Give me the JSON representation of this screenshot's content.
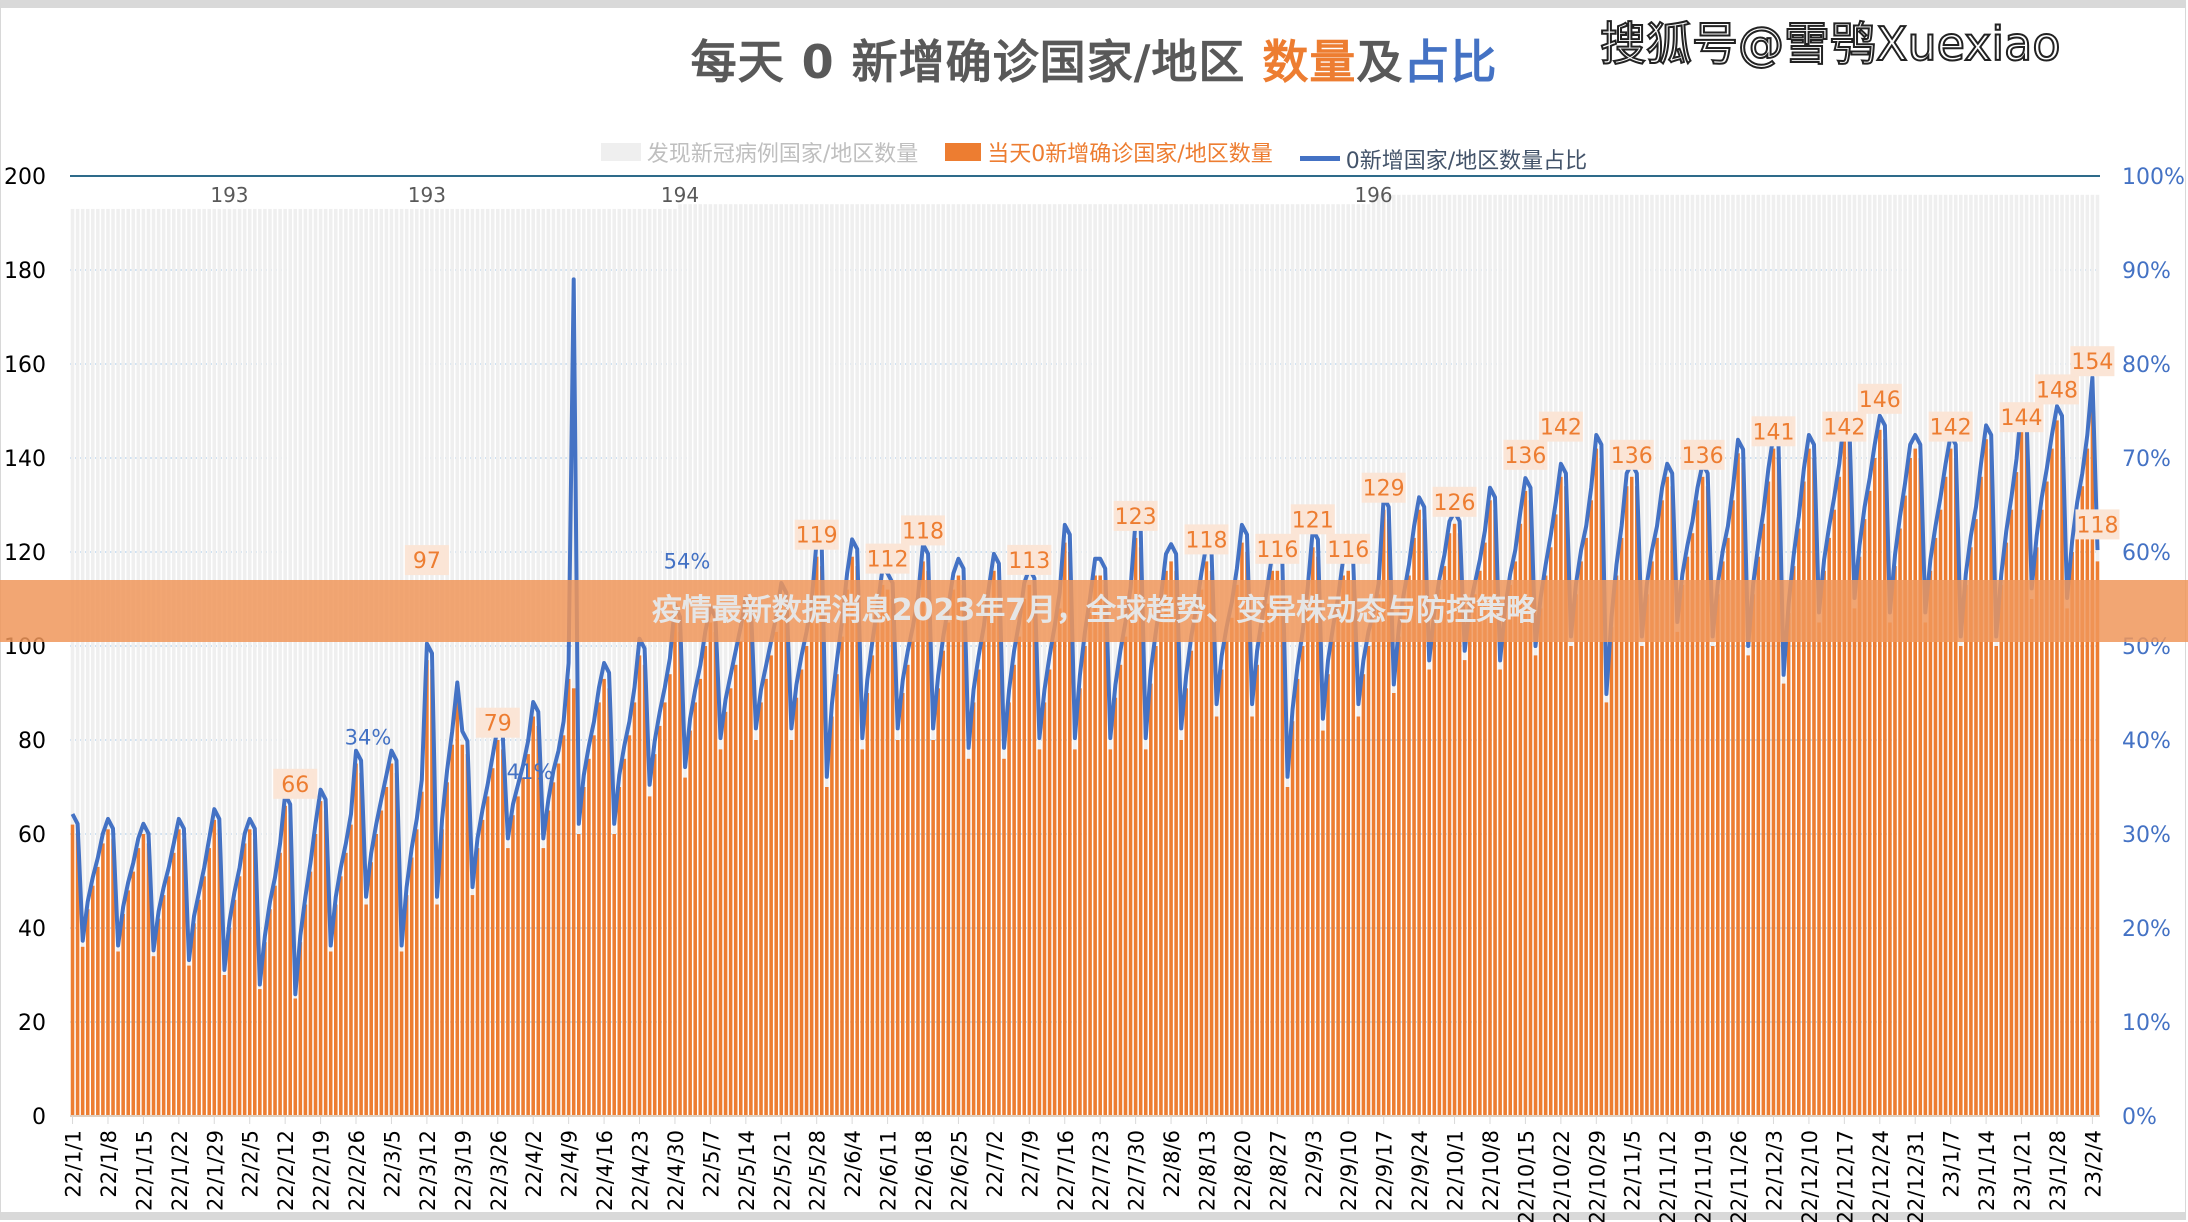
{
  "title": {
    "part1": "每天 0 新增确诊国家/地区 ",
    "part2": "数量",
    "part3": "及",
    "part4": "占比"
  },
  "legend": [
    {
      "label": "发现新冠病例国家/地区数量",
      "color": "#efefef"
    },
    {
      "label": "当天0新增确诊国家/地区数量",
      "color": "#ed7d31"
    },
    {
      "label": "0新增国家/地区数量占比",
      "color": "#4472c4"
    }
  ],
  "banner": "疫情最新数据消息2023年7月，全球趋势、变异株动态与防控策略",
  "watermark": "搜狐号@雪鸮Xuexiao",
  "chart_data": {
    "type": "bar+line",
    "y_left": {
      "range": [
        0,
        200
      ],
      "ticks": [
        "0",
        "20",
        "40",
        "60",
        "80",
        "100",
        "120",
        "140",
        "160",
        "180",
        "200"
      ]
    },
    "y_right": {
      "range": [
        0,
        100
      ],
      "ticks": [
        "0%",
        "10%",
        "20%",
        "30%",
        "40%",
        "50%",
        "60%",
        "70%",
        "80%",
        "90%",
        "100%"
      ]
    },
    "grid": true,
    "legend_position": "top",
    "x_ticks": [
      "22/1/1",
      "22/1/8",
      "22/1/15",
      "22/1/22",
      "22/1/29",
      "22/2/5",
      "22/2/12",
      "22/2/19",
      "22/2/26",
      "22/3/5",
      "22/3/12",
      "22/3/19",
      "22/3/26",
      "22/4/2",
      "22/4/9",
      "22/4/16",
      "22/4/23",
      "22/4/30",
      "22/5/7",
      "22/5/14",
      "22/5/21",
      "22/5/28",
      "22/6/4",
      "22/6/11",
      "22/6/18",
      "22/6/25",
      "22/7/2",
      "22/7/9",
      "22/7/16",
      "22/7/23",
      "22/7/30",
      "22/8/6",
      "22/8/13",
      "22/8/20",
      "22/8/27",
      "22/9/3",
      "22/9/10",
      "22/9/17",
      "22/9/24",
      "22/10/1",
      "22/10/8",
      "22/10/15",
      "22/10/22",
      "22/10/29",
      "22/11/5",
      "22/11/12",
      "22/11/19",
      "22/11/26",
      "22/12/3",
      "22/12/10",
      "22/12/17",
      "22/12/24",
      "22/12/31",
      "23/1/7",
      "23/1/14",
      "23/1/21",
      "23/1/28",
      "23/2/4"
    ],
    "total_countries": [
      {
        "from": "22/1/1",
        "to": "22/4/30",
        "value": 193
      },
      {
        "from": "22/5/1",
        "to": "22/9/14",
        "value": 194
      },
      {
        "from": "22/9/15",
        "to": "23/2/5",
        "value": 196
      }
    ],
    "total_labels": [
      {
        "date": "22/2/1",
        "text": "193"
      },
      {
        "date": "22/3/12",
        "text": "193"
      },
      {
        "date": "22/5/1",
        "text": "194"
      },
      {
        "date": "22/9/15",
        "text": "196"
      }
    ],
    "zero_new_counts": [
      62,
      60,
      36,
      44,
      49,
      53,
      58,
      61,
      59,
      35,
      43,
      48,
      52,
      57,
      60,
      58,
      34,
      42,
      47,
      51,
      56,
      61,
      59,
      32,
      41,
      46,
      51,
      57,
      63,
      61,
      30,
      40,
      46,
      51,
      58,
      61,
      59,
      27,
      37,
      44,
      49,
      56,
      66,
      64,
      25,
      37,
      45,
      52,
      60,
      67,
      65,
      35,
      45,
      51,
      56,
      62,
      75,
      73,
      45,
      54,
      60,
      65,
      70,
      75,
      73,
      35,
      47,
      55,
      61,
      69,
      97,
      95,
      45,
      61,
      71,
      79,
      89,
      79,
      77,
      47,
      57,
      63,
      68,
      74,
      80,
      78,
      57,
      64,
      68,
      72,
      77,
      85,
      83,
      57,
      65,
      71,
      75,
      81,
      93,
      91,
      60,
      70,
      76,
      81,
      88,
      93,
      91,
      60,
      70,
      76,
      81,
      88,
      98,
      96,
      68,
      77,
      83,
      88,
      94,
      105,
      103,
      72,
      82,
      88,
      93,
      100,
      105,
      103,
      78,
      86,
      91,
      96,
      101,
      107,
      105,
      80,
      88,
      93,
      98,
      103,
      110,
      108,
      80,
      89,
      95,
      100,
      106,
      119,
      117,
      70,
      85,
      94,
      102,
      112,
      119,
      117,
      78,
      90,
      98,
      105,
      113,
      112,
      110,
      80,
      90,
      96,
      101,
      107,
      118,
      116,
      80,
      91,
      99,
      105,
      112,
      115,
      113,
      76,
      88,
      95,
      101,
      109,
      116,
      114,
      76,
      88,
      96,
      102,
      110,
      113,
      111,
      78,
      88,
      95,
      101,
      108,
      122,
      120,
      78,
      91,
      100,
      107,
      115,
      115,
      113,
      78,
      89,
      96,
      102,
      109,
      123,
      121,
      78,
      92,
      100,
      107,
      116,
      118,
      116,
      80,
      91,
      99,
      105,
      112,
      118,
      116,
      85,
      95,
      101,
      106,
      113,
      122,
      120,
      85,
      96,
      103,
      109,
      116,
      116,
      114,
      70,
      84,
      93,
      100,
      109,
      121,
      119,
      82,
      94,
      101,
      107,
      115,
      116,
      114,
      85,
      94,
      100,
      105,
      111,
      129,
      127,
      90,
      102,
      109,
      115,
      123,
      129,
      127,
      95,
      105,
      112,
      117,
      124,
      126,
      124,
      97,
      106,
      111,
      116,
      122,
      131,
      129,
      95,
      106,
      113,
      118,
      126,
      133,
      131,
      98,
      108,
      115,
      121,
      128,
      136,
      134,
      100,
      111,
      118,
      123,
      131,
      142,
      140,
      88,
      104,
      115,
      123,
      134,
      136,
      134,
      100,
      111,
      118,
      123,
      131,
      136,
      134,
      103,
      113,
      119,
      124,
      131,
      136,
      134,
      100,
      111,
      118,
      123,
      131,
      141,
      139,
      98,
      111,
      119,
      126,
      135,
      142,
      140,
      92,
      107,
      117,
      125,
      135,
      142,
      140,
      105,
      116,
      123,
      129,
      136,
      146,
      144,
      108,
      119,
      127,
      133,
      140,
      146,
      144,
      105,
      117,
      125,
      132,
      140,
      142,
      140,
      105,
      116,
      123,
      129,
      136,
      142,
      140,
      100,
      113,
      121,
      127,
      136,
      144,
      142,
      100,
      113,
      122,
      129,
      137,
      148,
      146,
      110,
      121,
      129,
      135,
      142,
      148,
      146,
      108,
      120,
      128,
      134,
      142,
      154,
      118
    ],
    "ratio_pct_overrides": [
      {
        "date": "22/4/10",
        "value": 89
      }
    ],
    "count_labels": [
      {
        "date": "22/2/14",
        "text": "66"
      },
      {
        "date": "22/3/12",
        "text": "97"
      },
      {
        "date": "22/3/26",
        "text": "79"
      },
      {
        "date": "22/5/28",
        "text": "119"
      },
      {
        "date": "22/6/11",
        "text": "112"
      },
      {
        "date": "22/6/18",
        "text": "118"
      },
      {
        "date": "22/7/9",
        "text": "113"
      },
      {
        "date": "22/7/30",
        "text": "123"
      },
      {
        "date": "22/8/13",
        "text": "118"
      },
      {
        "date": "22/8/27",
        "text": "116"
      },
      {
        "date": "22/9/3",
        "text": "121"
      },
      {
        "date": "22/9/10",
        "text": "116"
      },
      {
        "date": "22/9/17",
        "text": "129"
      },
      {
        "date": "22/10/1",
        "text": "126"
      },
      {
        "date": "22/10/15",
        "text": "136"
      },
      {
        "date": "22/10/22",
        "text": "142"
      },
      {
        "date": "22/11/5",
        "text": "136"
      },
      {
        "date": "22/11/19",
        "text": "136"
      },
      {
        "date": "22/12/3",
        "text": "141"
      },
      {
        "date": "22/12/17",
        "text": "142"
      },
      {
        "date": "22/12/24",
        "text": "146"
      },
      {
        "date": "23/1/7",
        "text": "142"
      },
      {
        "date": "23/1/21",
        "text": "144"
      },
      {
        "date": "23/1/28",
        "text": "148"
      },
      {
        "date": "23/2/4",
        "text": "154"
      },
      {
        "date": "23/2/5",
        "text": "118"
      }
    ],
    "pct_labels": [
      {
        "date": "22/2/26",
        "text": "34%"
      },
      {
        "date": "22/3/30",
        "text": "41%"
      },
      {
        "date": "22/4/30",
        "text": "54%"
      }
    ],
    "colors": {
      "count": "#ed7d31",
      "ratio": "#4472c4",
      "total": "#efefef",
      "axis_line": "#2e6b8a",
      "grid": "#9dc3e6"
    }
  }
}
